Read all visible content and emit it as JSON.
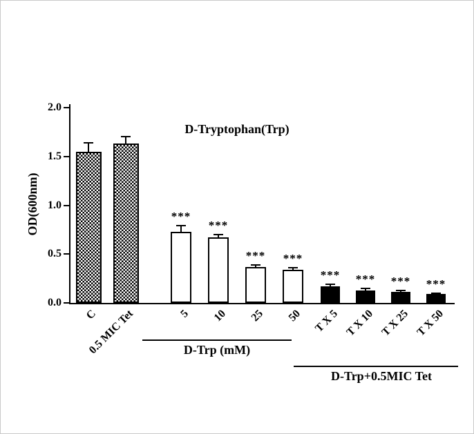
{
  "figure": {
    "background": "#ffffff",
    "border_color": "#c9c9c9",
    "ink_color": "#000000"
  },
  "chart_data": {
    "type": "bar",
    "title": "D-Tryptophan(Trp)",
    "xlabel": "",
    "ylabel": "OD(600nm)",
    "ylim": [
      0.0,
      2.0
    ],
    "yticks": [
      0.0,
      0.5,
      1.0,
      1.5,
      2.0
    ],
    "ytick_labels": [
      "0.0",
      "0.5",
      "1.0",
      "1.5",
      "2.0"
    ],
    "grid": false,
    "legend": false,
    "bar_color": "#000000",
    "categories": [
      "C",
      "0.5 MIC Tet",
      "5",
      "10",
      "25",
      "50",
      "T X 5",
      "T X 10",
      "T X 25",
      "T X 50"
    ],
    "values": [
      1.55,
      1.63,
      0.73,
      0.67,
      0.37,
      0.34,
      0.17,
      0.13,
      0.11,
      0.09
    ],
    "errors": [
      0.09,
      0.07,
      0.06,
      0.03,
      0.02,
      0.02,
      0.02,
      0.015,
      0.015,
      0.012
    ],
    "significance": [
      "",
      "",
      "***",
      "***",
      "***",
      "***",
      "***",
      "***",
      "***",
      "***"
    ],
    "bar_styles": [
      "checker",
      "checker",
      "open",
      "open",
      "open",
      "open",
      "solid",
      "solid",
      "solid",
      "solid"
    ],
    "groups": [
      {
        "label": "D-Trp (mM)",
        "start_index": 2,
        "end_index": 5
      },
      {
        "label": "D-Trp+0.5MIC Tet",
        "start_index": 6,
        "end_index": 9
      }
    ]
  }
}
